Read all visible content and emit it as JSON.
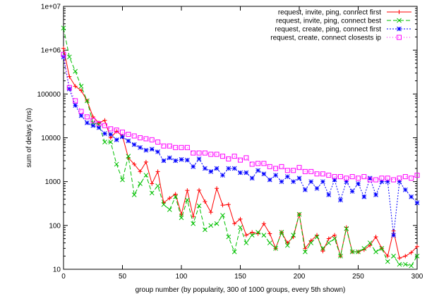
{
  "chart_data": {
    "type": "line",
    "xlabel": "group number (by popularity, 300 of 1000 groups, every 5th shown)",
    "ylabel": "sum of delays (ms)",
    "xlim": [
      0,
      300
    ],
    "ylim": [
      10,
      10000000
    ],
    "y_scale": "log",
    "grid": false,
    "legend_position": "top-right",
    "x_ticks": [
      0,
      50,
      100,
      150,
      200,
      250,
      300
    ],
    "x_tick_labels": [
      "0",
      "50",
      "100",
      "150",
      "200",
      "250",
      "300"
    ],
    "y_ticks": [
      10,
      100,
      1000,
      10000,
      100000,
      1000000,
      10000000
    ],
    "y_tick_labels": [
      "10",
      "100",
      "1000",
      "10000",
      "100000",
      "1e+06",
      "1e+07"
    ],
    "series": [
      {
        "name": "request, invite, ping, connect first",
        "color": "#ff0000",
        "dash": "",
        "marker": "plus",
        "x": [
          0,
          5,
          10,
          15,
          20,
          25,
          30,
          35,
          40,
          45,
          50,
          55,
          60,
          65,
          70,
          75,
          80,
          85,
          90,
          95,
          100,
          105,
          110,
          115,
          120,
          125,
          130,
          135,
          140,
          145,
          150,
          155,
          160,
          165,
          170,
          175,
          180,
          185,
          190,
          195,
          200,
          205,
          210,
          215,
          220,
          225,
          230,
          235,
          240,
          245,
          250,
          255,
          260,
          265,
          270,
          275,
          280,
          285,
          290,
          295,
          300
        ],
        "values": [
          1100000,
          250000,
          150000,
          120000,
          70000,
          30000,
          22000,
          25000,
          10000,
          14000,
          11000,
          3500,
          2500,
          1700,
          2800,
          900,
          1700,
          330,
          420,
          520,
          180,
          630,
          160,
          640,
          350,
          200,
          700,
          290,
          300,
          110,
          140,
          60,
          70,
          65,
          110,
          65,
          30,
          70,
          40,
          55,
          180,
          30,
          45,
          60,
          26,
          50,
          60,
          20,
          90,
          25,
          25,
          28,
          35,
          55,
          30,
          20,
          75,
          18,
          20,
          24,
          33
        ]
      },
      {
        "name": "request, invite, ping, connect best",
        "color": "#00c000",
        "dash": "6,3",
        "marker": "x",
        "x": [
          0,
          5,
          10,
          15,
          20,
          25,
          30,
          35,
          40,
          45,
          50,
          55,
          60,
          65,
          70,
          75,
          80,
          85,
          90,
          95,
          100,
          105,
          110,
          115,
          120,
          125,
          130,
          135,
          140,
          145,
          150,
          155,
          160,
          165,
          170,
          175,
          180,
          185,
          190,
          195,
          200,
          205,
          210,
          215,
          220,
          225,
          230,
          235,
          240,
          245,
          250,
          255,
          260,
          265,
          270,
          275,
          280,
          285,
          290,
          295,
          300
        ],
        "values": [
          3200000,
          700000,
          330000,
          150000,
          70000,
          22000,
          20000,
          8000,
          8000,
          2500,
          1100,
          3800,
          500,
          900,
          1400,
          550,
          800,
          300,
          230,
          450,
          150,
          380,
          110,
          280,
          80,
          100,
          110,
          170,
          55,
          25,
          90,
          40,
          60,
          70,
          60,
          40,
          30,
          70,
          35,
          60,
          180,
          25,
          40,
          55,
          30,
          40,
          50,
          20,
          85,
          25,
          25,
          30,
          40,
          25,
          30,
          15,
          20,
          13,
          13,
          12,
          20
        ]
      },
      {
        "name": "request, create, ping, connect first",
        "color": "#0000ff",
        "dash": "2,2",
        "marker": "star",
        "x": [
          0,
          5,
          10,
          15,
          20,
          25,
          30,
          35,
          40,
          45,
          50,
          55,
          60,
          65,
          70,
          75,
          80,
          85,
          90,
          95,
          100,
          105,
          110,
          115,
          120,
          125,
          130,
          135,
          140,
          145,
          150,
          155,
          160,
          165,
          170,
          175,
          180,
          185,
          190,
          195,
          200,
          205,
          210,
          215,
          220,
          225,
          230,
          235,
          240,
          245,
          250,
          255,
          260,
          265,
          270,
          275,
          280,
          285,
          290,
          295,
          300
        ],
        "values": [
          700000,
          130000,
          55000,
          32000,
          22000,
          19000,
          17000,
          12500,
          12000,
          9000,
          10500,
          8500,
          7000,
          6000,
          5200,
          5500,
          4800,
          3000,
          3500,
          3000,
          3200,
          3100,
          2200,
          3300,
          2000,
          1700,
          2000,
          1400,
          2000,
          2000,
          1600,
          1600,
          1200,
          1800,
          1500,
          1100,
          1400,
          1000,
          1300,
          1000,
          1200,
          650,
          1000,
          700,
          1000,
          500,
          1100,
          380,
          1000,
          600,
          900,
          450,
          1200,
          500,
          1000,
          1000,
          60,
          1000,
          650,
          450,
          330
        ]
      },
      {
        "name": "request, create, connect closests ip",
        "color": "#ff00ff",
        "dash": "1,3",
        "marker": "square",
        "x": [
          0,
          5,
          10,
          15,
          20,
          25,
          30,
          35,
          40,
          45,
          50,
          55,
          60,
          65,
          70,
          75,
          80,
          85,
          90,
          95,
          100,
          105,
          110,
          115,
          120,
          125,
          130,
          135,
          140,
          145,
          150,
          155,
          160,
          165,
          170,
          175,
          180,
          185,
          190,
          195,
          200,
          205,
          210,
          215,
          220,
          225,
          230,
          235,
          240,
          245,
          250,
          255,
          260,
          265,
          270,
          275,
          280,
          285,
          290,
          295,
          300
        ],
        "values": [
          800000,
          140000,
          70000,
          40000,
          30000,
          25000,
          21000,
          19000,
          16000,
          15000,
          13500,
          12000,
          11000,
          10000,
          9500,
          9000,
          8000,
          6500,
          6500,
          6000,
          6000,
          6000,
          4500,
          4500,
          4500,
          4200,
          4200,
          3800,
          3300,
          3800,
          3100,
          3500,
          2500,
          2600,
          2600,
          2200,
          2000,
          2200,
          1800,
          1800,
          2100,
          1700,
          1700,
          1500,
          1500,
          1400,
          1300,
          1300,
          1200,
          1300,
          1200,
          1300,
          1100,
          1100,
          1200,
          1200,
          1100,
          1200,
          1300,
          1200,
          1400
        ]
      }
    ]
  }
}
